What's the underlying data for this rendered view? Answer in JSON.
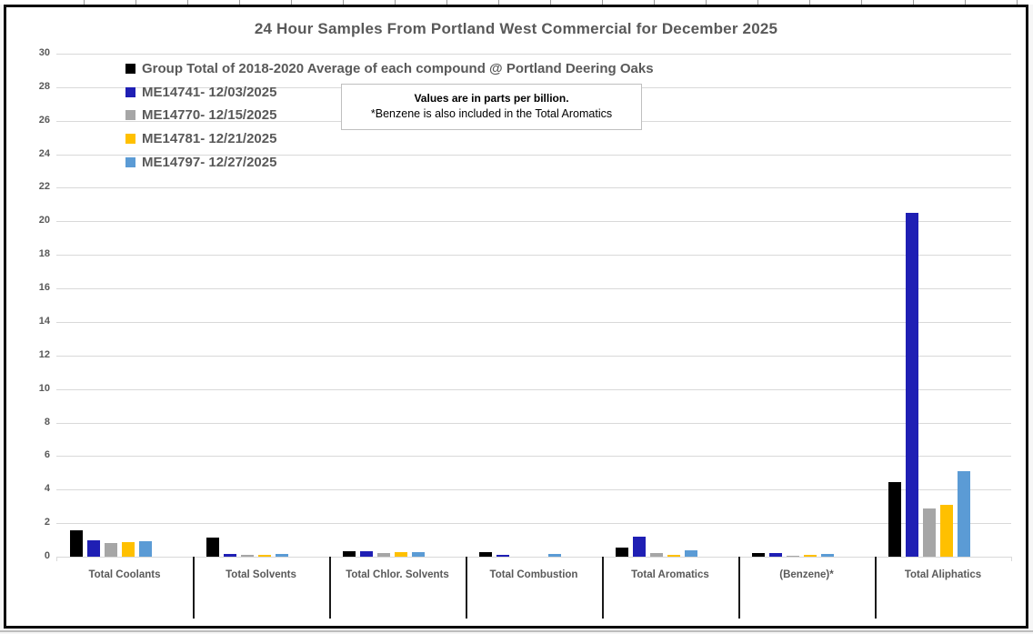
{
  "chart_data": {
    "type": "bar",
    "title": "24 Hour Samples From Portland West Commercial for December 2025",
    "value_unit": "parts per billion",
    "categories": [
      "Total Coolants",
      "Total Solvents",
      "Total Chlor. Solvents",
      "Total Combustion",
      "Total Aromatics",
      "(Benzene)*",
      "Total Aliphatics"
    ],
    "series": [
      {
        "name": "Group Total of 2018-2020 Average of each compound @ Portland Deering Oaks",
        "color": "#000000",
        "values": [
          1.55,
          1.15,
          0.3,
          0.25,
          0.55,
          0.2,
          4.45
        ]
      },
      {
        "name": "ME14741- 12/03/2025",
        "color": "#1f1fb4",
        "values": [
          1.0,
          0.15,
          0.35,
          0.1,
          1.2,
          0.2,
          20.5
        ]
      },
      {
        "name": "ME14770- 12/15/2025",
        "color": "#a6a6a6",
        "values": [
          0.8,
          0.1,
          0.2,
          0,
          0.2,
          0.05,
          2.9
        ]
      },
      {
        "name": "ME14781- 12/21/2025",
        "color": "#ffc000",
        "values": [
          0.85,
          0.1,
          0.25,
          0,
          0.1,
          0.1,
          3.1
        ]
      },
      {
        "name": "ME14797- 12/27/2025",
        "color": "#5b9bd5",
        "values": [
          0.9,
          0.15,
          0.25,
          0.15,
          0.4,
          0.15,
          5.1
        ]
      }
    ],
    "ylim": [
      0,
      30
    ],
    "ytick_step": 2,
    "grid": true,
    "legend_position": "top-left",
    "annotation": {
      "line1": "Values are in parts per billion.",
      "line2": "*Benzene is also included in the Total Aromatics"
    }
  }
}
